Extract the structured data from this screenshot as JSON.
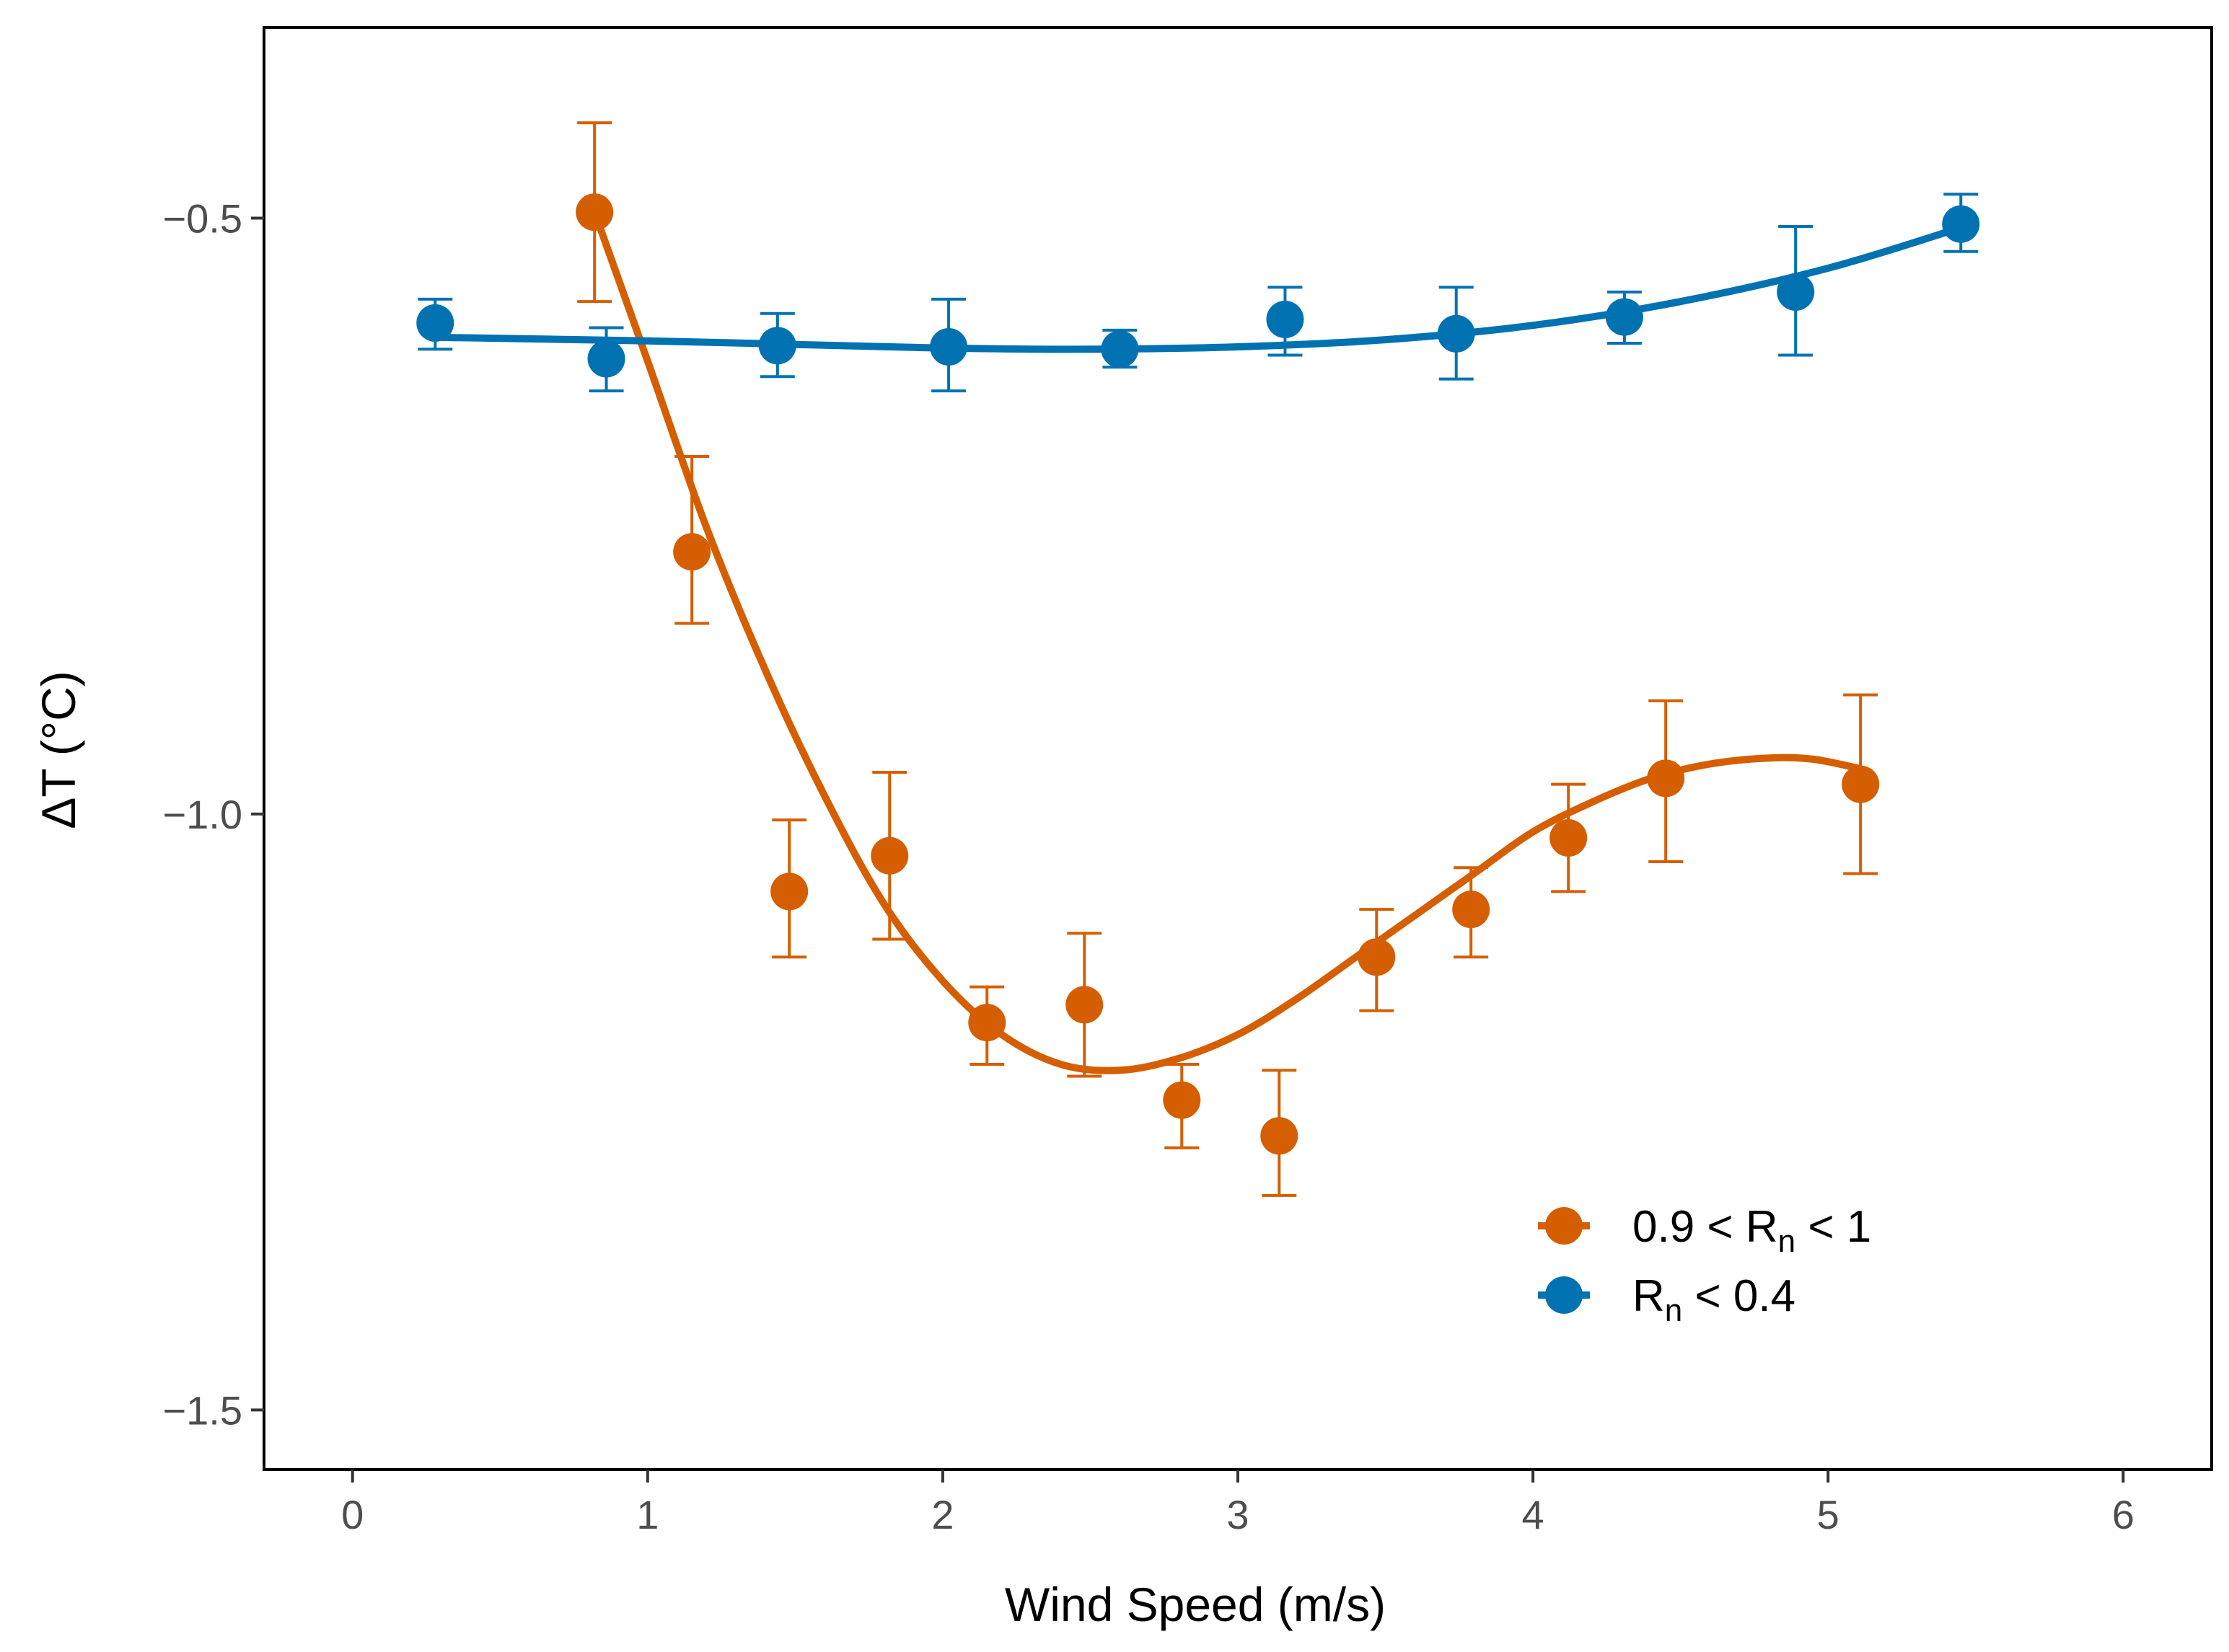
{
  "chart_data": {
    "type": "scatter",
    "xlabel": "Wind Speed (m/s)",
    "ylabel": "ΔT (°C)",
    "xlim": [
      -0.3,
      6.3
    ],
    "ylim": [
      -1.55,
      -0.34
    ],
    "xticks": [
      0,
      1,
      2,
      3,
      4,
      5,
      6
    ],
    "xtick_labels": [
      "0",
      "1",
      "2",
      "3",
      "4",
      "5",
      "6"
    ],
    "yticks": [
      -0.5,
      -1.0,
      -1.5
    ],
    "ytick_labels": [
      "−0.5",
      "−1.0",
      "−1.5"
    ],
    "grid": false,
    "legend_position": "bottom-right",
    "series": [
      {
        "legend_main": "0.9 < R",
        "legend_sub": "n",
        "legend_tail": " < 1",
        "color": "#D55E00",
        "points": [
          {
            "x": 0.82,
            "y": -0.495,
            "lo": -0.57,
            "hi": -0.42
          },
          {
            "x": 1.15,
            "y": -0.78,
            "lo": -0.84,
            "hi": -0.7
          },
          {
            "x": 1.48,
            "y": -1.065,
            "lo": -1.12,
            "hi": -1.005
          },
          {
            "x": 1.82,
            "y": -1.035,
            "lo": -1.105,
            "hi": -0.965
          },
          {
            "x": 2.15,
            "y": -1.175,
            "lo": -1.21,
            "hi": -1.145
          },
          {
            "x": 2.48,
            "y": -1.16,
            "lo": -1.22,
            "hi": -1.1
          },
          {
            "x": 2.81,
            "y": -1.24,
            "lo": -1.28,
            "hi": -1.21
          },
          {
            "x": 3.14,
            "y": -1.27,
            "lo": -1.32,
            "hi": -1.215
          },
          {
            "x": 3.47,
            "y": -1.12,
            "lo": -1.165,
            "hi": -1.08
          },
          {
            "x": 3.79,
            "y": -1.08,
            "lo": -1.12,
            "hi": -1.045
          },
          {
            "x": 4.12,
            "y": -1.02,
            "lo": -1.065,
            "hi": -0.975
          },
          {
            "x": 4.45,
            "y": -0.97,
            "lo": -1.04,
            "hi": -0.905
          },
          {
            "x": 5.11,
            "y": -0.975,
            "lo": -1.05,
            "hi": -0.9
          }
        ],
        "fit": [
          [
            0.82,
            -0.495
          ],
          [
            1.0,
            -0.62
          ],
          [
            1.2,
            -0.76
          ],
          [
            1.4,
            -0.88
          ],
          [
            1.6,
            -0.985
          ],
          [
            1.8,
            -1.075
          ],
          [
            2.0,
            -1.14
          ],
          [
            2.2,
            -1.185
          ],
          [
            2.4,
            -1.21
          ],
          [
            2.6,
            -1.215
          ],
          [
            2.8,
            -1.205
          ],
          [
            3.0,
            -1.185
          ],
          [
            3.2,
            -1.155
          ],
          [
            3.4,
            -1.12
          ],
          [
            3.6,
            -1.085
          ],
          [
            3.8,
            -1.05
          ],
          [
            4.0,
            -1.015
          ],
          [
            4.2,
            -0.99
          ],
          [
            4.4,
            -0.97
          ],
          [
            4.6,
            -0.958
          ],
          [
            4.8,
            -0.953
          ],
          [
            4.95,
            -0.954
          ],
          [
            5.11,
            -0.962
          ]
        ]
      },
      {
        "legend_main": "R",
        "legend_sub": "n",
        "legend_tail": " < 0.4",
        "color": "#0072B2",
        "points": [
          {
            "x": 0.28,
            "y": -0.588,
            "lo": -0.61,
            "hi": -0.568
          },
          {
            "x": 0.86,
            "y": -0.618,
            "lo": -0.645,
            "hi": -0.592
          },
          {
            "x": 1.44,
            "y": -0.607,
            "lo": -0.633,
            "hi": -0.58
          },
          {
            "x": 2.02,
            "y": -0.608,
            "lo": -0.645,
            "hi": -0.568
          },
          {
            "x": 2.6,
            "y": -0.61,
            "lo": -0.625,
            "hi": -0.594
          },
          {
            "x": 3.16,
            "y": -0.585,
            "lo": -0.615,
            "hi": -0.558
          },
          {
            "x": 3.74,
            "y": -0.597,
            "lo": -0.635,
            "hi": -0.558
          },
          {
            "x": 4.31,
            "y": -0.583,
            "lo": -0.605,
            "hi": -0.562
          },
          {
            "x": 4.89,
            "y": -0.562,
            "lo": -0.615,
            "hi": -0.507
          },
          {
            "x": 5.45,
            "y": -0.505,
            "lo": -0.528,
            "hi": -0.48
          }
        ],
        "fit": [
          [
            0.28,
            -0.6
          ],
          [
            1.0,
            -0.603
          ],
          [
            1.5,
            -0.606
          ],
          [
            2.0,
            -0.609
          ],
          [
            2.5,
            -0.61
          ],
          [
            3.0,
            -0.608
          ],
          [
            3.5,
            -0.602
          ],
          [
            4.0,
            -0.59
          ],
          [
            4.5,
            -0.57
          ],
          [
            5.0,
            -0.542
          ],
          [
            5.45,
            -0.508
          ]
        ]
      }
    ]
  }
}
